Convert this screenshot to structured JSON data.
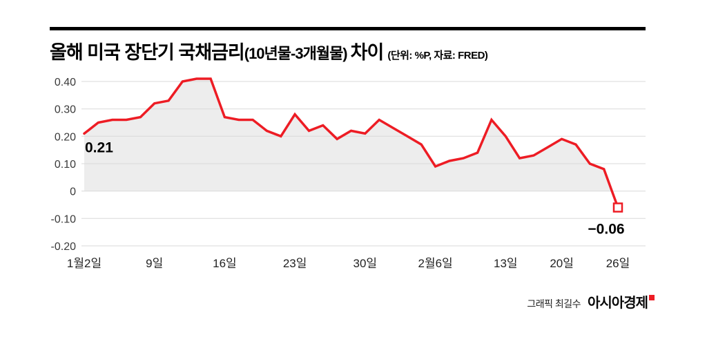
{
  "header": {
    "title_main_1": "올해 미국 장단기 국채금리",
    "title_paren": "(10년물-3개월물)",
    "title_main_2": "차이",
    "unit_note": "(단위: %P, 자료: FRED)"
  },
  "footer": {
    "credit": "그래픽 최길수",
    "brand": "아시아경제"
  },
  "colors": {
    "line": "#ed1c24",
    "area": "#ededed",
    "grid": "#d9d9d9",
    "axis_text": "#3a3a3a",
    "tick_text": "#222222",
    "annotation_text": "#000000",
    "marker_fill": "#ffffff",
    "accent": "#ed1c24"
  },
  "chart_data": {
    "type": "line",
    "title": "올해 미국 장단기 국채금리(10년물-3개월물) 차이",
    "unit": "%P",
    "source": "FRED",
    "xlabel": "",
    "ylabel": "",
    "grid": true,
    "legend": false,
    "area_fill": true,
    "ylim": [
      -0.2,
      0.45
    ],
    "y_ticks": [
      0.4,
      0.3,
      0.2,
      0.1,
      0,
      -0.1,
      -0.2
    ],
    "y_tick_labels": [
      "0.40",
      "0.30",
      "0.20",
      "0.10",
      "0",
      "-0.10",
      "-0.20"
    ],
    "x_tick_labels": [
      "1월2일",
      "9일",
      "16일",
      "23일",
      "30일",
      "2월6일",
      "13일",
      "20일",
      "26일"
    ],
    "x_tick_indices": [
      0,
      5,
      10,
      15,
      20,
      25,
      30,
      34,
      38
    ],
    "dates": [
      "1월2일",
      "1월3일",
      "1월4일",
      "1월5일",
      "1월8일",
      "1월9일",
      "1월10일",
      "1월11일",
      "1월12일",
      "1월15일",
      "1월16일",
      "1월17일",
      "1월18일",
      "1월19일",
      "1월22일",
      "1월23일",
      "1월24일",
      "1월25일",
      "1월26일",
      "1월29일",
      "1월30일",
      "1월31일",
      "2월1일",
      "2월2일",
      "2월5일",
      "2월6일",
      "2월7일",
      "2월8일",
      "2월9일",
      "2월12일",
      "2월13일",
      "2월14일",
      "2월15일",
      "2월16일",
      "2월20일",
      "2월21일",
      "2월22일",
      "2월23일",
      "2월26일"
    ],
    "values": [
      0.21,
      0.25,
      0.26,
      0.26,
      0.27,
      0.32,
      0.33,
      0.4,
      0.41,
      0.41,
      0.27,
      0.26,
      0.26,
      0.22,
      0.2,
      0.28,
      0.22,
      0.24,
      0.19,
      0.22,
      0.21,
      0.26,
      0.23,
      0.2,
      0.17,
      0.09,
      0.11,
      0.12,
      0.14,
      0.26,
      0.2,
      0.12,
      0.13,
      0.16,
      0.19,
      0.17,
      0.1,
      0.08,
      -0.06
    ],
    "start_label": "0.21",
    "end_label": "−0.06"
  }
}
